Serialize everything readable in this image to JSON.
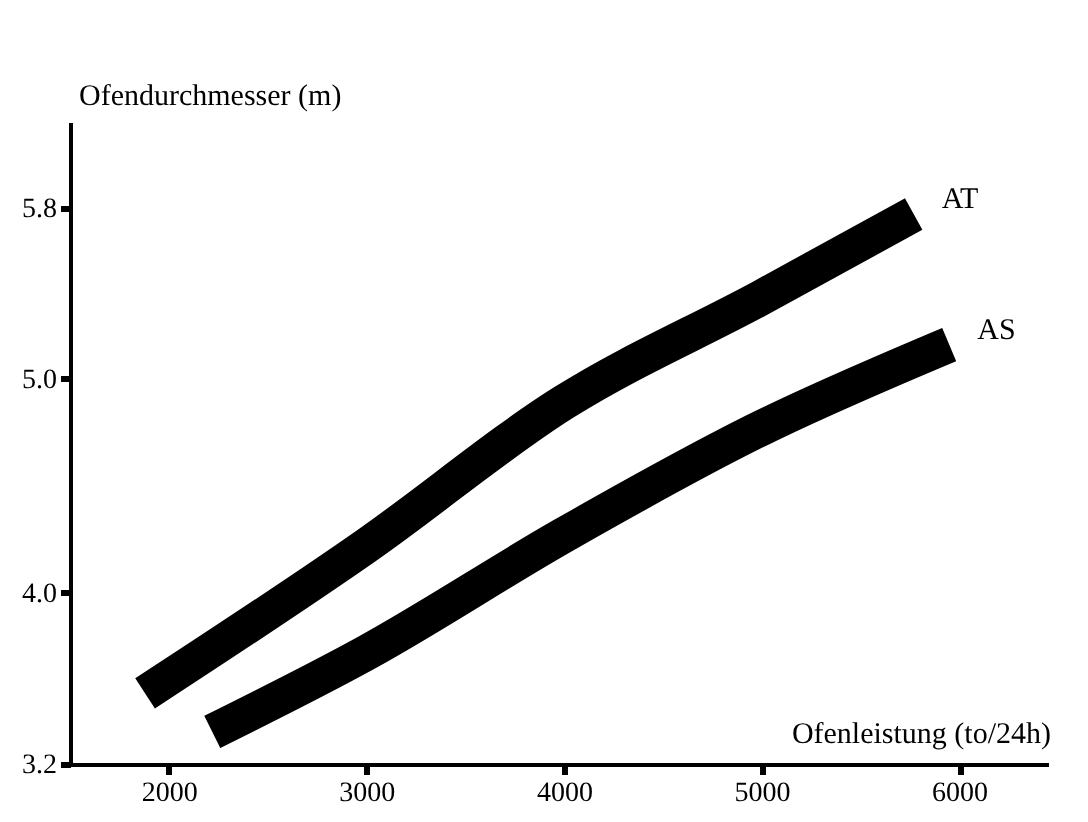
{
  "chart_data": {
    "type": "line",
    "xlabel": "Ofenleistung (to/24h)",
    "ylabel": "Ofendurchmesser (m)",
    "xlim": [
      1500,
      6450
    ],
    "ylim": [
      3.2,
      6.2
    ],
    "xticks": [
      2000,
      3000,
      4000,
      5000,
      6000
    ],
    "yticks": [
      "3.2",
      {
        "value": 4,
        "label": "4.0"
      },
      {
        "value": 5,
        "label": "5.0"
      },
      "5.8"
    ],
    "grid": false,
    "legend": false,
    "marker": "none",
    "line_style": "solid",
    "series": [
      {
        "name": "AT",
        "color": "#000000",
        "x": [
          1880,
          3000,
          4000,
          5000,
          5770
        ],
        "values": [
          3.53,
          4.22,
          4.89,
          5.38,
          5.77
        ]
      },
      {
        "name": "AS",
        "color": "#000000",
        "x": [
          2220,
          3000,
          4000,
          5000,
          5950
        ],
        "values": [
          3.35,
          3.72,
          4.27,
          4.77,
          5.16
        ]
      }
    ]
  }
}
